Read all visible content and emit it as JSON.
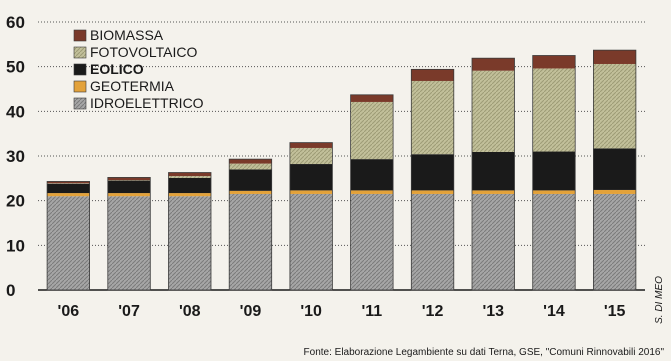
{
  "chart_data": {
    "type": "bar",
    "stacked": true,
    "categories": [
      "'06",
      "'07",
      "'08",
      "'09",
      "'10",
      "'11",
      "'12",
      "'13",
      "'14",
      "'15"
    ],
    "ylim": [
      0,
      60
    ],
    "yticks": [
      0,
      10,
      20,
      30,
      40,
      50,
      60
    ],
    "grid": true,
    "legend_position": "top-left",
    "series": [
      {
        "name": "IDROELETTRICO",
        "color": "#9a9a9a",
        "values": [
          21,
          21,
          21,
          21.5,
          21.5,
          21.5,
          21.5,
          21.5,
          21.5,
          21.5
        ]
      },
      {
        "name": "GEOTERMIA",
        "color": "#e3a23a",
        "values": [
          0.7,
          0.7,
          0.7,
          0.7,
          0.8,
          0.8,
          0.8,
          0.8,
          0.8,
          0.9
        ]
      },
      {
        "name": "EOLICO",
        "color": "#1a1a1a",
        "values": [
          2.1,
          2.8,
          3.4,
          4.8,
          5.9,
          7.0,
          8.1,
          8.6,
          8.7,
          9.3
        ]
      },
      {
        "name": "FOTOVOLTAICO",
        "color": "#b6b48c",
        "values": [
          0.1,
          0.1,
          0.4,
          1.3,
          3.6,
          12.8,
          16.4,
          18.2,
          18.6,
          18.9
        ]
      },
      {
        "name": "BIOMASSA",
        "color": "#7a3a2a",
        "values": [
          0.4,
          0.6,
          0.8,
          1.0,
          1.2,
          1.6,
          2.6,
          2.8,
          2.9,
          3.1
        ]
      }
    ],
    "legend_order": [
      "BIOMASSA",
      "FOTOVOLTAICO",
      "EOLICO",
      "GEOTERMIA",
      "IDROELETTRICO"
    ],
    "source": "Fonte: Elaborazione Legambiente su dati Terna, GSE, \"Comuni Rinnovabili 2016\"",
    "credit": "S. DI MEO"
  }
}
